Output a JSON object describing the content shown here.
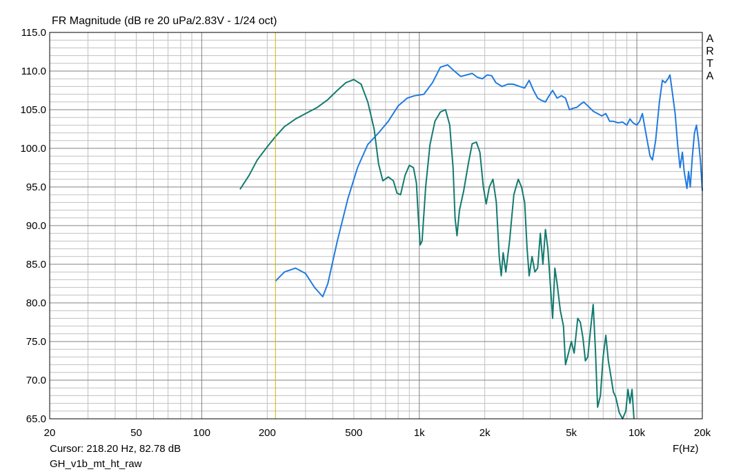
{
  "title": "FR Magnitude (dB re 20 uPa/2.83V - 1/24 oct)",
  "cursor_readout": "Cursor: 218.20 Hz, 82.78 dB",
  "file_name": "GH_v1b_mt_ht_raw",
  "logo_letters": [
    "A",
    "R",
    "T",
    "A"
  ],
  "colors": {
    "series_1": "#1f7ae0",
    "series_2": "#117a6e",
    "cursor": "#c8b400",
    "grid": "#c0c0c0",
    "grid_major": "#808080"
  },
  "chart_data": {
    "type": "line",
    "title": "FR Magnitude (dB re 20 uPa/2.83V - 1/24 oct)",
    "xlabel": "F(Hz)",
    "ylabel": "",
    "xscale": "log",
    "xlim": [
      20,
      20000
    ],
    "ylim": [
      65,
      115
    ],
    "grid": true,
    "x_ticks": [
      20,
      50,
      100,
      200,
      500,
      1000,
      2000,
      5000,
      10000,
      20000
    ],
    "x_tick_labels": [
      "20",
      "50",
      "100",
      "200",
      "500",
      "1k",
      "2k",
      "5k",
      "10k",
      "20k"
    ],
    "y_ticks": [
      65,
      70,
      75,
      80,
      85,
      90,
      95,
      100,
      105,
      110,
      115
    ],
    "y_tick_labels": [
      "65.0",
      "70.0",
      "75.0",
      "80.0",
      "85.0",
      "90.0",
      "95.0",
      "100.0",
      "105.0",
      "110.0",
      "115.0"
    ],
    "cursor": {
      "x": 218.2,
      "y": 82.78
    },
    "series": [
      {
        "color": "#1f7ae0",
        "points": [
          [
            218,
            82.8
          ],
          [
            240,
            84
          ],
          [
            270,
            84.5
          ],
          [
            300,
            83.8
          ],
          [
            330,
            82
          ],
          [
            360,
            80.8
          ],
          [
            380,
            82.5
          ],
          [
            420,
            88
          ],
          [
            470,
            93.5
          ],
          [
            520,
            97.5
          ],
          [
            580,
            100.5
          ],
          [
            650,
            102
          ],
          [
            720,
            103.5
          ],
          [
            800,
            105.5
          ],
          [
            880,
            106.5
          ],
          [
            950,
            106.8
          ],
          [
            1050,
            107
          ],
          [
            1150,
            108.5
          ],
          [
            1250,
            110.5
          ],
          [
            1350,
            110.8
          ],
          [
            1450,
            110
          ],
          [
            1550,
            109.3
          ],
          [
            1650,
            109.5
          ],
          [
            1750,
            109.7
          ],
          [
            1850,
            109.2
          ],
          [
            1950,
            109
          ],
          [
            2050,
            109.5
          ],
          [
            2150,
            109.4
          ],
          [
            2250,
            108.5
          ],
          [
            2400,
            108
          ],
          [
            2550,
            108.3
          ],
          [
            2700,
            108.3
          ],
          [
            2900,
            108
          ],
          [
            3050,
            107.8
          ],
          [
            3200,
            108.8
          ],
          [
            3350,
            107.5
          ],
          [
            3500,
            106.5
          ],
          [
            3650,
            106.2
          ],
          [
            3800,
            106
          ],
          [
            3950,
            106.8
          ],
          [
            4100,
            107.5
          ],
          [
            4300,
            106.5
          ],
          [
            4500,
            106.8
          ],
          [
            4700,
            106.5
          ],
          [
            4900,
            105
          ],
          [
            5100,
            105.2
          ],
          [
            5300,
            105.3
          ],
          [
            5500,
            105.7
          ],
          [
            5700,
            106
          ],
          [
            5900,
            105.6
          ],
          [
            6100,
            105.2
          ],
          [
            6300,
            104.8
          ],
          [
            6600,
            104.5
          ],
          [
            6900,
            104.2
          ],
          [
            7200,
            104.5
          ],
          [
            7500,
            103.5
          ],
          [
            7800,
            103.5
          ],
          [
            8200,
            103.3
          ],
          [
            8600,
            103.4
          ],
          [
            9000,
            103
          ],
          [
            9300,
            103.8
          ],
          [
            9600,
            103.3
          ],
          [
            10000,
            103
          ],
          [
            10300,
            103.5
          ],
          [
            10600,
            104.5
          ],
          [
            11000,
            102
          ],
          [
            11500,
            99
          ],
          [
            11800,
            98.5
          ],
          [
            12200,
            101
          ],
          [
            12700,
            106
          ],
          [
            13100,
            108.8
          ],
          [
            13500,
            108.5
          ],
          [
            13900,
            109
          ],
          [
            14200,
            109.5
          ],
          [
            14600,
            107
          ],
          [
            15000,
            104.5
          ],
          [
            15400,
            100.5
          ],
          [
            15800,
            97.5
          ],
          [
            16200,
            99.5
          ],
          [
            16500,
            97
          ],
          [
            17000,
            94.8
          ],
          [
            17300,
            97
          ],
          [
            17600,
            95
          ],
          [
            18000,
            99
          ],
          [
            18400,
            102
          ],
          [
            18800,
            103
          ],
          [
            19200,
            101
          ],
          [
            19600,
            98.5
          ],
          [
            20000,
            94.5
          ]
        ]
      },
      {
        "color": "#117a6e",
        "points": [
          [
            150,
            94.7
          ],
          [
            165,
            96.5
          ],
          [
            180,
            98.5
          ],
          [
            200,
            100.2
          ],
          [
            218,
            101.5
          ],
          [
            240,
            102.8
          ],
          [
            270,
            103.8
          ],
          [
            300,
            104.5
          ],
          [
            340,
            105.3
          ],
          [
            380,
            106.3
          ],
          [
            420,
            107.5
          ],
          [
            460,
            108.5
          ],
          [
            500,
            108.9
          ],
          [
            540,
            108.3
          ],
          [
            580,
            106
          ],
          [
            620,
            102.5
          ],
          [
            650,
            98
          ],
          [
            680,
            95.8
          ],
          [
            720,
            96.3
          ],
          [
            760,
            95.8
          ],
          [
            790,
            94.2
          ],
          [
            820,
            94
          ],
          [
            860,
            96.5
          ],
          [
            900,
            97.8
          ],
          [
            940,
            97.5
          ],
          [
            970,
            95.5
          ],
          [
            990,
            91
          ],
          [
            1010,
            87.5
          ],
          [
            1030,
            88
          ],
          [
            1070,
            95
          ],
          [
            1120,
            100.5
          ],
          [
            1180,
            103.5
          ],
          [
            1250,
            104.7
          ],
          [
            1320,
            105
          ],
          [
            1380,
            103
          ],
          [
            1430,
            97.5
          ],
          [
            1460,
            91
          ],
          [
            1490,
            88.7
          ],
          [
            1530,
            92
          ],
          [
            1600,
            94.5
          ],
          [
            1680,
            98
          ],
          [
            1750,
            100.6
          ],
          [
            1830,
            100.8
          ],
          [
            1900,
            99.5
          ],
          [
            1970,
            95
          ],
          [
            2030,
            92.8
          ],
          [
            2100,
            95
          ],
          [
            2180,
            96
          ],
          [
            2260,
            93
          ],
          [
            2330,
            86
          ],
          [
            2380,
            83.5
          ],
          [
            2430,
            86.5
          ],
          [
            2500,
            84
          ],
          [
            2600,
            88
          ],
          [
            2720,
            94
          ],
          [
            2850,
            96
          ],
          [
            2950,
            95
          ],
          [
            3050,
            93
          ],
          [
            3130,
            87
          ],
          [
            3200,
            83.5
          ],
          [
            3300,
            86
          ],
          [
            3400,
            84
          ],
          [
            3500,
            84.5
          ],
          [
            3600,
            89
          ],
          [
            3700,
            85
          ],
          [
            3800,
            89.5
          ],
          [
            3900,
            87
          ],
          [
            4000,
            82.5
          ],
          [
            4100,
            78
          ],
          [
            4200,
            84.5
          ],
          [
            4300,
            82.5
          ],
          [
            4450,
            79
          ],
          [
            4600,
            77
          ],
          [
            4700,
            72
          ],
          [
            4850,
            73.5
          ],
          [
            5000,
            75
          ],
          [
            5150,
            73.5
          ],
          [
            5350,
            78
          ],
          [
            5500,
            77.5
          ],
          [
            5650,
            75.5
          ],
          [
            5800,
            72.5
          ],
          [
            5950,
            73
          ],
          [
            6150,
            77
          ],
          [
            6300,
            79.8
          ],
          [
            6450,
            74
          ],
          [
            6600,
            66.5
          ],
          [
            6800,
            68
          ],
          [
            7000,
            73
          ],
          [
            7200,
            75.8
          ],
          [
            7400,
            72.5
          ],
          [
            7600,
            70.5
          ],
          [
            7800,
            68.5
          ],
          [
            8000,
            67.8
          ],
          [
            8300,
            65.8
          ],
          [
            8600,
            65
          ],
          [
            8900,
            66
          ],
          [
            9100,
            68.8
          ],
          [
            9300,
            67
          ],
          [
            9500,
            68.8
          ],
          [
            9700,
            65
          ]
        ]
      }
    ]
  }
}
